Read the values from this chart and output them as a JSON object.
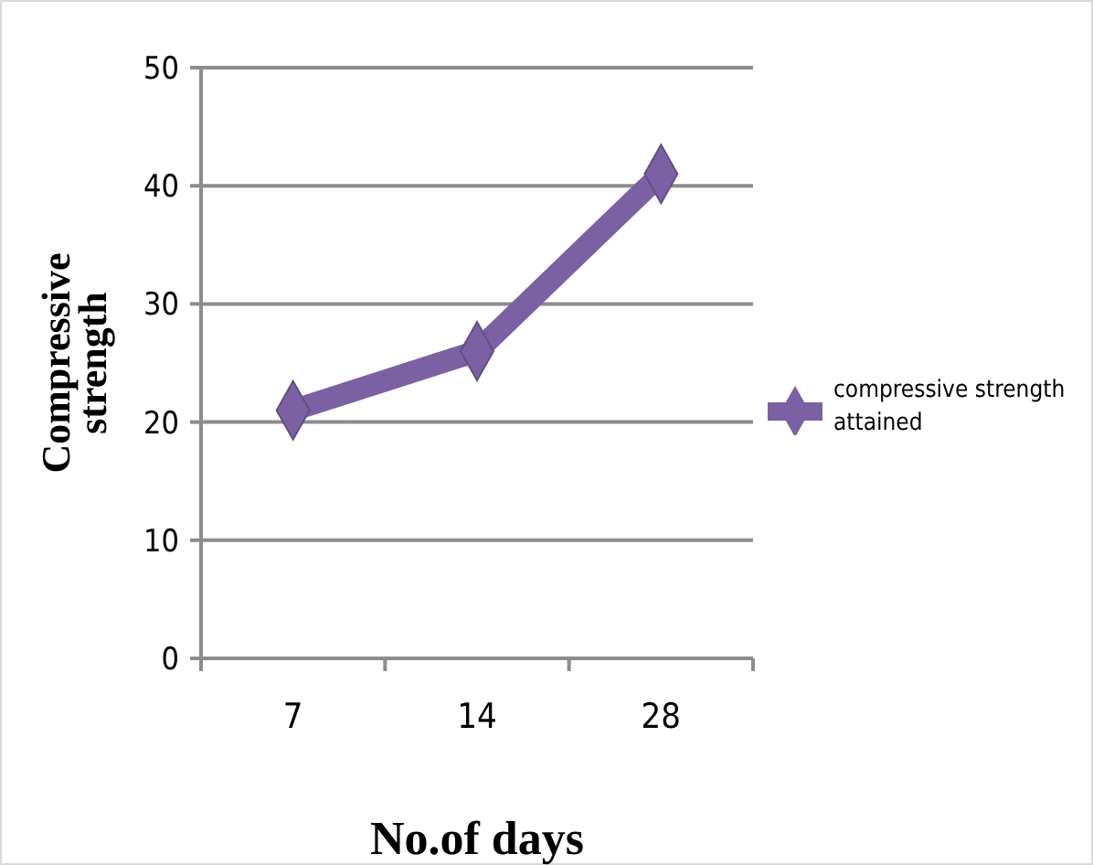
{
  "chart_data": {
    "type": "line",
    "xlabel": "No.of days",
    "ylabel": "Compressive strength",
    "categories": [
      "7",
      "14",
      "28"
    ],
    "series": [
      {
        "name": "compressive strength attained",
        "color": "#7b61a3",
        "values": [
          21,
          26,
          41
        ]
      }
    ],
    "ylim": [
      0,
      50
    ],
    "yticks": [
      0,
      10,
      20,
      30,
      40,
      50
    ],
    "grid": "y",
    "legend": "right",
    "marker": "diamond",
    "line_style": "solid"
  }
}
